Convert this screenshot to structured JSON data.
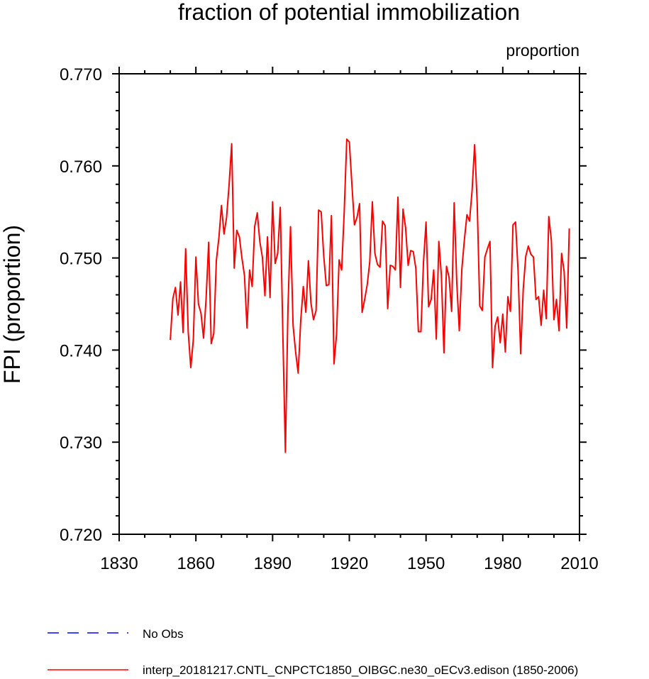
{
  "chart_data": {
    "type": "line",
    "title": "fraction of potential immobilization",
    "units_label": "proportion",
    "ylabel": "FPI  (proportion)",
    "xlabel": "",
    "xlim": [
      1830,
      2010
    ],
    "ylim": [
      0.72,
      0.77
    ],
    "x_ticks": [
      1830,
      1860,
      1890,
      1920,
      1950,
      1980,
      2010
    ],
    "x_tick_labels": [
      "1830",
      "1860",
      "1890",
      "1920",
      "1950",
      "1980",
      "2010"
    ],
    "y_ticks": [
      0.72,
      0.73,
      0.74,
      0.75,
      0.76,
      0.77
    ],
    "y_tick_labels": [
      "0.720",
      "0.730",
      "0.740",
      "0.750",
      "0.760",
      "0.770"
    ],
    "grid": false,
    "legend": [
      {
        "label": "No Obs",
        "color": "#0000ff",
        "style": "dashed"
      },
      {
        "label": "interp_20181217.CNTL_CNPCTC1850_OIBGC.ne30_oECv3.edison (1850-2006)",
        "color": "#ff0000",
        "style": "solid"
      }
    ],
    "series": [
      {
        "name": "interp_20181217.CNTL_CNPCTC1850_OIBGC.ne30_oECv3.edison (1850-2006)",
        "color": "#ff0000",
        "x_start": 1850,
        "x_step": 1,
        "values": [
          0.7411,
          0.7456,
          0.7468,
          0.7438,
          0.7474,
          0.7419,
          0.751,
          0.742,
          0.7381,
          0.7411,
          0.7501,
          0.745,
          0.744,
          0.7413,
          0.7456,
          0.7517,
          0.7407,
          0.7418,
          0.7497,
          0.7522,
          0.7557,
          0.7526,
          0.7544,
          0.758,
          0.7624,
          0.7489,
          0.753,
          0.7523,
          0.75,
          0.7481,
          0.7424,
          0.7487,
          0.7469,
          0.7534,
          0.7549,
          0.7518,
          0.7501,
          0.7459,
          0.7523,
          0.7457,
          0.7561,
          0.7494,
          0.7505,
          0.7555,
          0.7418,
          0.7289,
          0.7445,
          0.7534,
          0.7427,
          0.7398,
          0.7375,
          0.7432,
          0.7469,
          0.7441,
          0.7497,
          0.7451,
          0.7433,
          0.7443,
          0.7552,
          0.755,
          0.7502,
          0.747,
          0.7471,
          0.7546,
          0.7385,
          0.7417,
          0.7498,
          0.7487,
          0.755,
          0.7629,
          0.7626,
          0.758,
          0.7536,
          0.7544,
          0.7559,
          0.7441,
          0.7455,
          0.7471,
          0.7496,
          0.7561,
          0.7505,
          0.7493,
          0.749,
          0.754,
          0.7535,
          0.7445,
          0.7492,
          0.7491,
          0.7487,
          0.7566,
          0.7468,
          0.7553,
          0.7533,
          0.7492,
          0.7508,
          0.7507,
          0.7489,
          0.742,
          0.742,
          0.7495,
          0.7539,
          0.7447,
          0.7455,
          0.7487,
          0.7412,
          0.7518,
          0.7481,
          0.7397,
          0.7491,
          0.7479,
          0.7442,
          0.756,
          0.7474,
          0.7421,
          0.7488,
          0.752,
          0.7547,
          0.754,
          0.7573,
          0.7623,
          0.756,
          0.7448,
          0.7443,
          0.7501,
          0.751,
          0.7518,
          0.7381,
          0.7426,
          0.7436,
          0.7408,
          0.7439,
          0.7398,
          0.7458,
          0.7442,
          0.7536,
          0.7539,
          0.7485,
          0.7396,
          0.7466,
          0.7502,
          0.7513,
          0.7504,
          0.7501,
          0.7455,
          0.7458,
          0.7427,
          0.7465,
          0.7434,
          0.7545,
          0.7519,
          0.7433,
          0.7455,
          0.7421,
          0.7505,
          0.7485,
          0.7424,
          0.7532
        ]
      }
    ]
  }
}
